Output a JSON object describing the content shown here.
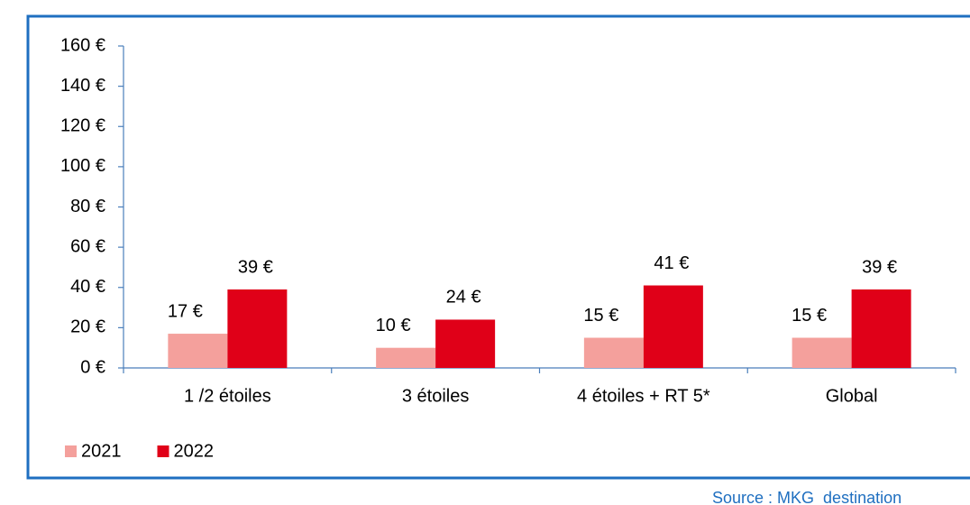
{
  "chart_data": {
    "type": "bar",
    "categories": [
      "1 /2 étoiles",
      "3 étoiles",
      "4 étoiles + RT 5*",
      "Global"
    ],
    "series": [
      {
        "name": "2021",
        "color": "#f4a09c",
        "values": [
          17,
          10,
          15,
          15
        ],
        "value_labels": [
          "17 €",
          "10 €",
          "15 €",
          "15 €"
        ]
      },
      {
        "name": "2022",
        "color": "#e00018",
        "values": [
          39,
          24,
          41,
          39
        ],
        "value_labels": [
          "39 €",
          "24 €",
          "41 €",
          "39 €"
        ]
      }
    ],
    "ylim": [
      0,
      160
    ],
    "yticks": [
      {
        "value": 0,
        "label": "0 €"
      },
      {
        "value": 20,
        "label": "20 €"
      },
      {
        "value": 40,
        "label": "40 €"
      },
      {
        "value": 60,
        "label": "60 €"
      },
      {
        "value": 80,
        "label": "80 €"
      },
      {
        "value": 100,
        "label": "100 €"
      },
      {
        "value": 120,
        "label": "120 €"
      },
      {
        "value": 140,
        "label": "140 €"
      },
      {
        "value": 160,
        "label": "160 €"
      }
    ],
    "legend": "bottom-left",
    "source": "Source : MKG_destination"
  }
}
